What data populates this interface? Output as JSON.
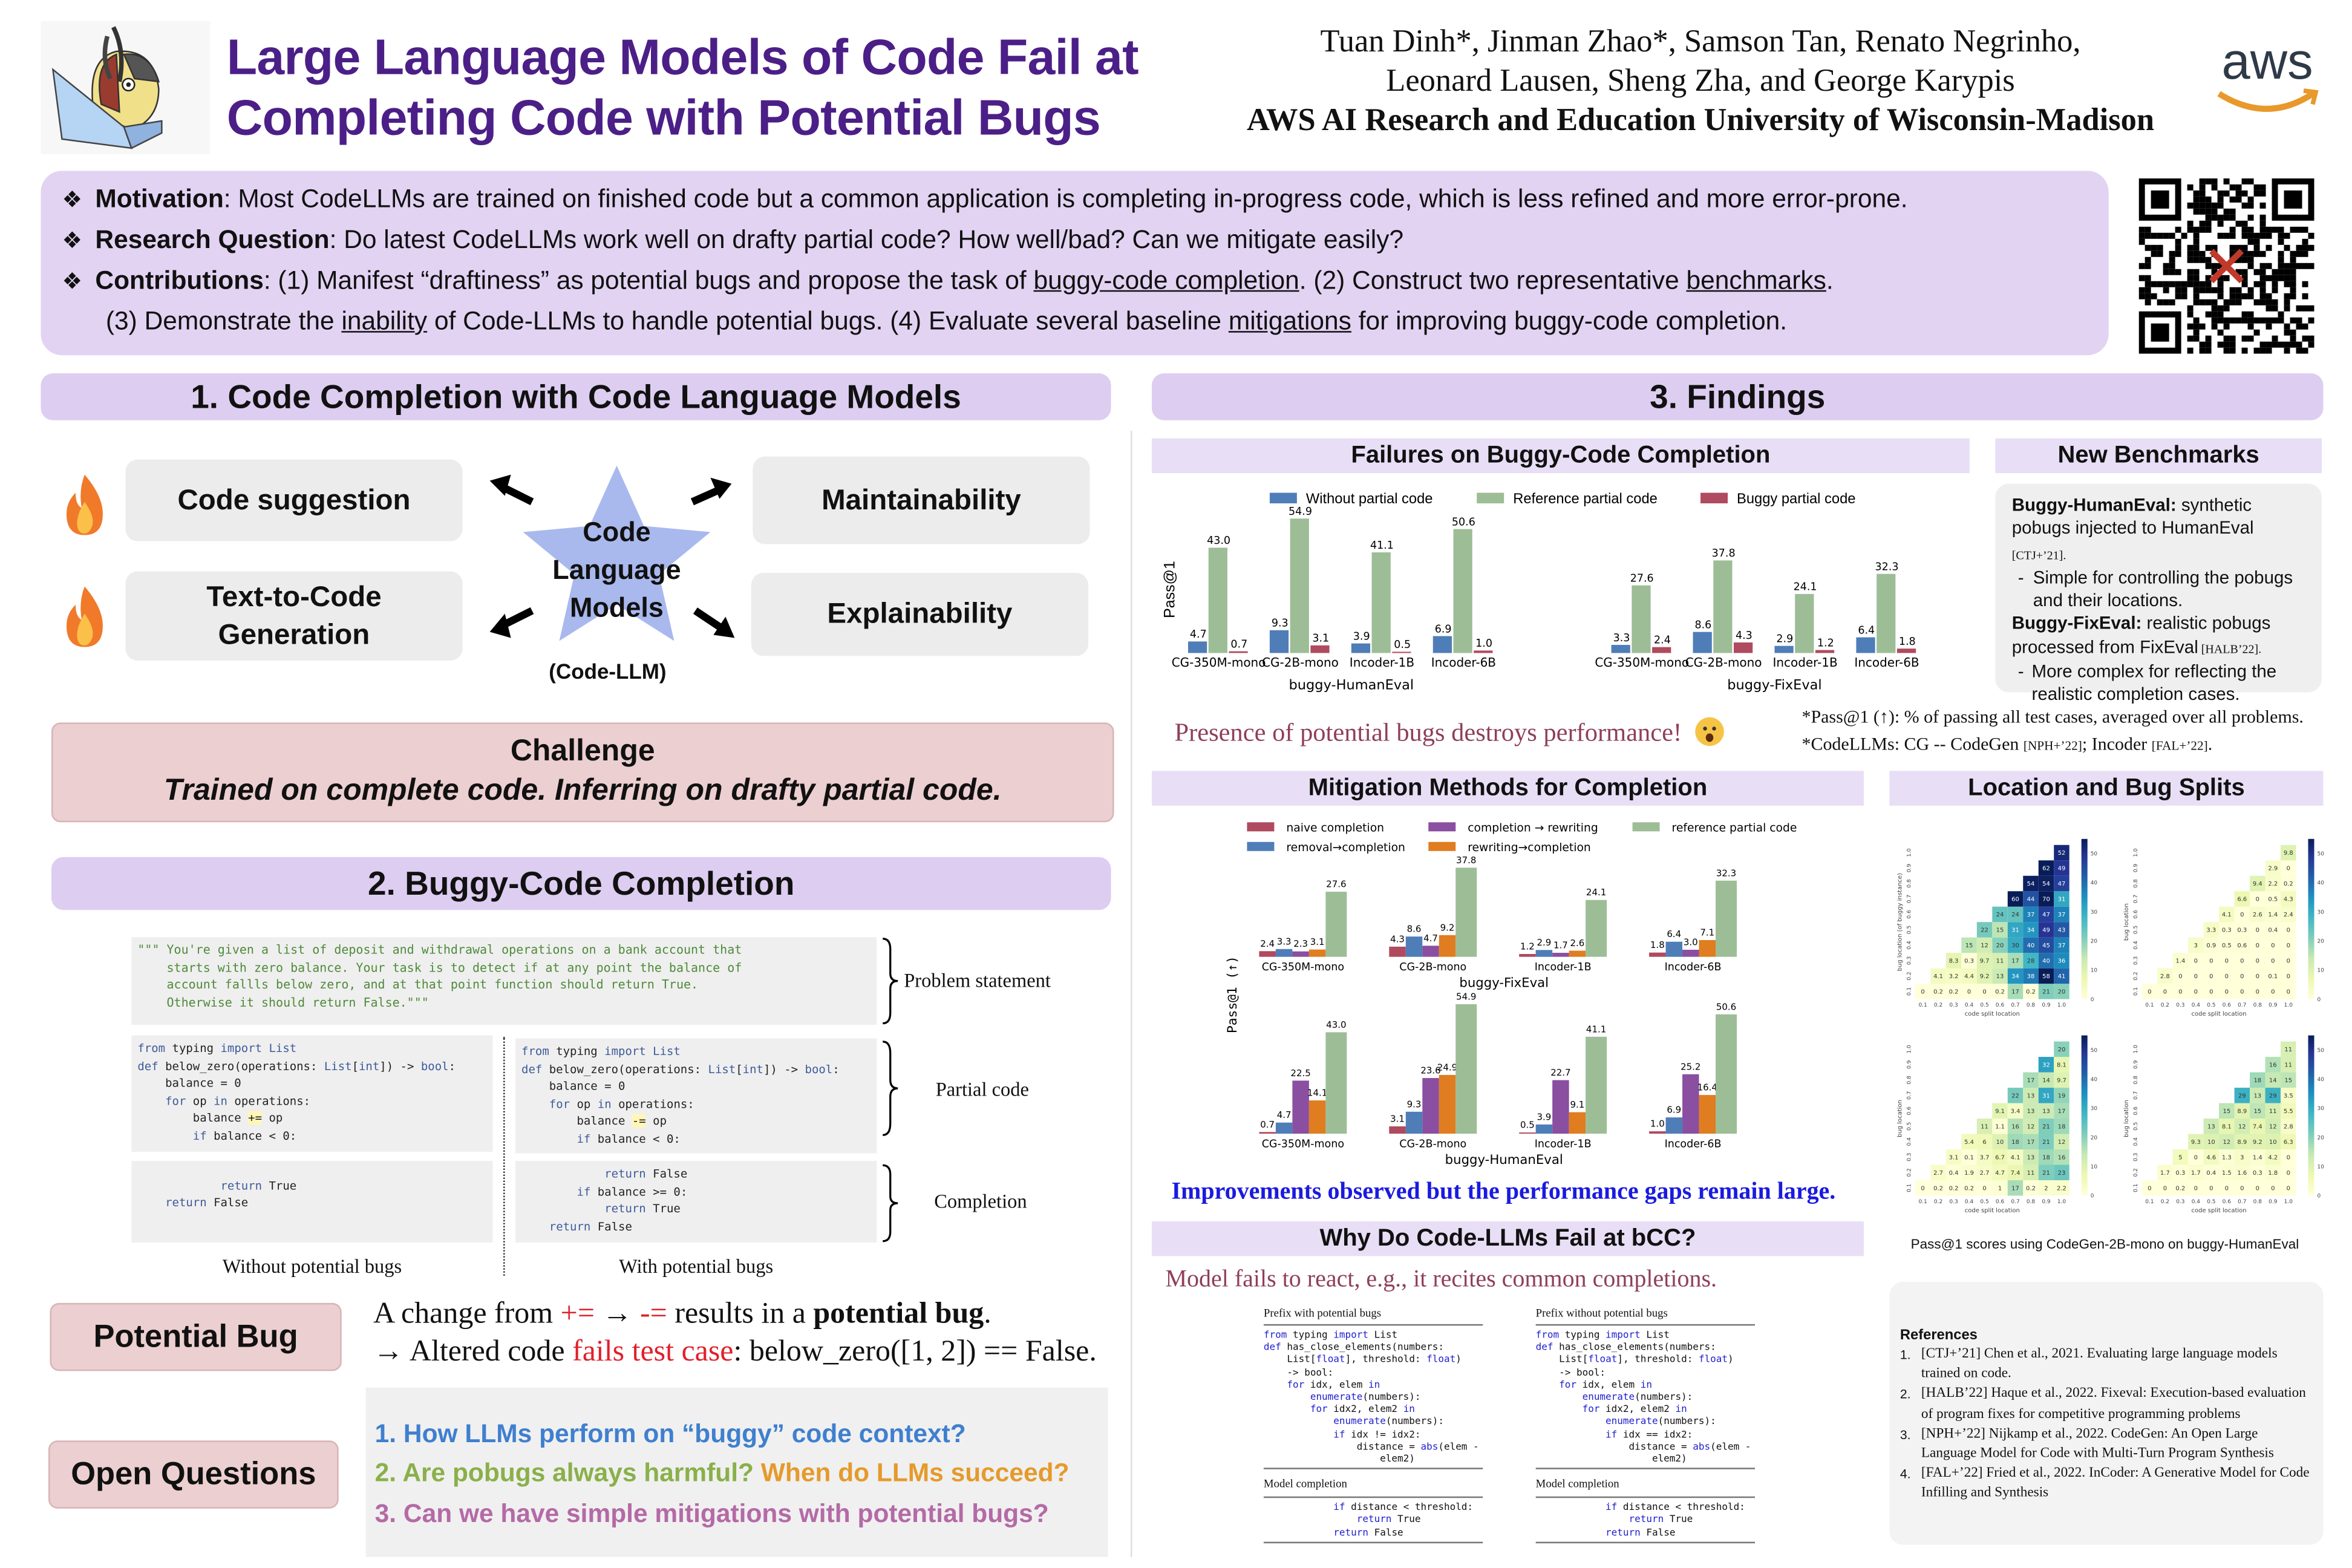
{
  "header": {
    "title_line1": "Large Language Models of Code Fail at",
    "title_line2": "Completing Code with Potential Bugs",
    "authors_line1": "Tuan Dinh*, Jinman Zhao*, Samson Tan, Renato Negrinho,",
    "authors_line2": "Leonard Lausen, Sheng Zha, and George Karypis",
    "affiliations": "AWS AI Research and Education University of Wisconsin-Madison",
    "aws_logo_text": "aws"
  },
  "motivation": {
    "items": [
      {
        "label": "Motivation",
        "text": ": Most CodeLLMs are trained on finished code but a common application is completing in-progress code, which is less refined and more error-prone."
      },
      {
        "label": "Research Question",
        "text": ": Do latest CodeLLMs work well on drafty partial code? How well/bad? Can we mitigate easily?"
      }
    ],
    "contrib_label": "Contributions",
    "contrib_a": ": (1) Manifest “draftiness” as potential bugs and propose the task of ",
    "contrib_link1": "buggy-code completion",
    "contrib_b": ". (2) Construct two representative ",
    "contrib_link2": "benchmarks",
    "contrib_c": ".",
    "contrib_d": "(3) Demonstrate the ",
    "contrib_link3": "inability",
    "contrib_e": " of Code-LLMs to handle potential bugs. (4) Evaluate several baseline ",
    "contrib_link4": "mitigations",
    "contrib_f": " for improving buggy-code completion."
  },
  "section1": {
    "title": "1.  Code Completion with Code Language Models",
    "left_boxes": [
      "Code suggestion",
      "Text-to-Code Generation"
    ],
    "right_boxes": [
      "Maintainability",
      "Explainability"
    ],
    "star_text": "Code Language Models",
    "star_sub": "(Code-LLM)",
    "challenge_title": "Challenge",
    "challenge_text": "Trained on complete code. Inferring on drafty partial code."
  },
  "section2": {
    "title": "2. Buggy-Code Completion",
    "problem_statement": [
      "\"\"\" You're given a list of deposit and withdrawal operations on a bank account that",
      "    starts with zero balance. Your task is to detect if at any point the balance of",
      "    account fallls below zero, and at that point function should return True.",
      "    Otherwise it should return False.\"\"\""
    ],
    "partial_without": [
      "from typing import List",
      "def below_zero(operations: List[int]) -> bool:",
      "    balance = 0",
      "    for op in operations:",
      "        balance += op",
      "        if balance < 0:"
    ],
    "partial_with": [
      "from typing import List",
      "def below_zero(operations: List[int]) -> bool:",
      "    balance = 0",
      "    for op in operations:",
      "        balance -= op",
      "        if balance < 0:"
    ],
    "completion_without": [
      "",
      "            return True",
      "    return False"
    ],
    "completion_with": [
      "            return False",
      "        if balance >= 0:",
      "            return True",
      "    return False"
    ],
    "label_problem": "Problem statement",
    "label_partial": "Partial code",
    "label_completion": "Completion",
    "caption_without": "Without potential bugs",
    "caption_with": "With potential bugs",
    "potential_bug_label": "Potential Bug",
    "pb_line1_a": "A change from ",
    "pb_plus": "+=",
    "pb_arrow": " → ",
    "pb_minus": "-=",
    "pb_line1_b": " results in a ",
    "pb_line1_bold": "potential bug",
    "pb_line1_end": ".",
    "pb_line2_a": "→ Altered code ",
    "pb_line2_red": "fails test case",
    "pb_line2_b": ": below_zero([1, 2]) == False.",
    "open_questions_label": "Open Questions",
    "questions": [
      {
        "text": "1.   How LLMs perform on “buggy” code context?"
      },
      {
        "text": "2.   Are pobugs always harmful?",
        "text2": " When do LLMs succeed?"
      },
      {
        "text": "3.   Can we have simple mitigations with potential bugs?"
      }
    ]
  },
  "section3": {
    "title": "3. Findings",
    "failures_title": "Failures on Buggy-Code Completion",
    "benchmarks_title": "New Benchmarks",
    "bench": {
      "b1_bold": "Buggy-HumanEval:",
      "b1_text": " synthetic pobugs injected to HumanEval",
      "b1_ref": " [CTJ+’21].",
      "b1_sub": "Simple for controlling the pobugs and their locations.",
      "b2_bold": "Buggy-FixEval:",
      "b2_text": "  realistic pobugs processed from FixEval",
      "b2_ref": " [HALB’22].",
      "b2_sub": "More complex for reflecting the realistic completion cases."
    },
    "presence_text": "Presence of potential bugs destroys performance!",
    "footnote1": "*Pass@1 (↑): % of passing all test cases, averaged over all problems.",
    "footnote2_a": "*CodeLLMs:  CG -- CodeGen ",
    "footnote2_ref1": "[NPH+’22]",
    "footnote2_b": "; Incoder ",
    "footnote2_ref2": "[FAL+’22]",
    "footnote2_c": ".",
    "mitigation_title": "Mitigation Methods for Completion",
    "location_title": "Location and Bug Splits",
    "improvements_text": "Improvements observed but the performance gaps remain large.",
    "why_title": "Why Do Code-LLMs Fail at bCC?",
    "why_text": "Model fails to react, e.g., it recites common completions.",
    "why_table": {
      "left_header": "Prefix with potential bugs",
      "right_header": "Prefix without potential bugs",
      "completion_header": "Model completion",
      "left_prefix": [
        "from typing import List",
        "def has_close_elements(numbers:",
        "    List[float], threshold: float)",
        "    -> bool:",
        "    for idx, elem in",
        "        enumerate(numbers):",
        "        for idx2, elem2 in",
        "            enumerate(numbers):",
        "            if idx != idx2:",
        "                distance = abs(elem -",
        "                    elem2)"
      ],
      "right_prefix": [
        "from typing import List",
        "def has_close_elements(numbers:",
        "    List[float], threshold: float)",
        "    -> bool:",
        "    for idx, elem in",
        "        enumerate(numbers):",
        "        for idx2, elem2 in",
        "            enumerate(numbers):",
        "            if idx == idx2:",
        "                distance = abs(elem -",
        "                    elem2)"
      ],
      "completion": [
        "            if distance < threshold:",
        "                return True",
        "            return False"
      ]
    },
    "heatmap_caption": "Pass@1 scores using CodeGen-2B-mono on buggy-HumanEval",
    "references_title": "References",
    "references": [
      "[CTJ+’21] Chen et al., 2021. Evaluating large language models trained on code.",
      "[HALB’22] Haque et al., 2022. Fixeval: Execution-based evaluation of program fixes for competitive programming problems",
      "[NPH+’22] Nijkamp et al., 2022. CodeGen: An Open Large Language Model for Code with Multi-Turn Program Synthesis",
      "[FAL+’22] Fried et al., 2022. InCoder: A Generative Model for Code Infilling and Synthesis"
    ]
  },
  "colors": {
    "title": "#4b1f87",
    "without_partial": "#4f7db8",
    "reference": "#9dbd96",
    "buggy": "#b04a5e",
    "completion_rewriting": "#8a4fa0",
    "rewriting_completion": "#e07d20",
    "q1": "#3f7fcf",
    "q2a": "#8ab04a",
    "q2b": "#e59a2b",
    "q3": "#b46aa6",
    "finding_text": "#8f3f5a",
    "improve_text": "#1a1ae0"
  },
  "chart_data": [
    {
      "type": "bar",
      "title": "Failures on Buggy-Code Completion",
      "ylabel": "Pass@1",
      "ylim": [
        0,
        60
      ],
      "categories": [
        "CG-350M-mono",
        "CG-2B-mono",
        "Incoder-1B",
        "Incoder-6B"
      ],
      "panels": [
        {
          "name": "buggy-HumanEval",
          "series": [
            {
              "name": "Without partial code",
              "values": [
                4.7,
                9.3,
                3.9,
                6.9
              ]
            },
            {
              "name": "Reference partial code",
              "values": [
                43.0,
                54.9,
                41.1,
                50.6
              ]
            },
            {
              "name": "Buggy partial code",
              "values": [
                0.7,
                3.1,
                0.5,
                1.0
              ]
            }
          ]
        },
        {
          "name": "buggy-FixEval",
          "series": [
            {
              "name": "Without partial code",
              "values": [
                3.3,
                8.6,
                2.9,
                6.4
              ]
            },
            {
              "name": "Reference partial code",
              "values": [
                27.6,
                37.8,
                24.1,
                32.3
              ]
            },
            {
              "name": "Buggy partial code",
              "values": [
                2.4,
                4.3,
                1.2,
                1.8
              ]
            }
          ]
        }
      ],
      "legend": "top"
    },
    {
      "type": "bar",
      "title": "Mitigation Methods for Completion",
      "ylabel": "Pass@1 (↑)",
      "ylim": [
        0,
        60
      ],
      "categories": [
        "CG-350M-mono",
        "CG-2B-mono",
        "Incoder-1B",
        "Incoder-6B"
      ],
      "legend_order": [
        "naive completion",
        "completion → rewriting",
        "reference partial code",
        "removal→completion",
        "rewriting→completion"
      ],
      "panels": [
        {
          "name": "buggy-FixEval",
          "series": [
            {
              "name": "naive completion",
              "values": [
                2.4,
                4.3,
                1.2,
                1.8
              ]
            },
            {
              "name": "removal→completion",
              "values": [
                3.3,
                8.6,
                2.9,
                6.4
              ]
            },
            {
              "name": "completion → rewriting",
              "values": [
                2.3,
                4.7,
                1.7,
                3.0
              ]
            },
            {
              "name": "rewriting→completion",
              "values": [
                3.1,
                9.2,
                2.6,
                7.1
              ]
            },
            {
              "name": "reference partial code",
              "values": [
                27.6,
                37.8,
                24.1,
                32.3
              ]
            }
          ]
        },
        {
          "name": "buggy-HumanEval",
          "series": [
            {
              "name": "naive completion",
              "values": [
                0.7,
                3.1,
                0.5,
                1.0
              ]
            },
            {
              "name": "removal→completion",
              "values": [
                4.7,
                9.3,
                3.9,
                6.9
              ]
            },
            {
              "name": "completion → rewriting",
              "values": [
                22.5,
                23.6,
                22.7,
                25.2
              ]
            },
            {
              "name": "rewriting→completion",
              "values": [
                14.1,
                24.9,
                9.1,
                16.4
              ]
            },
            {
              "name": "reference partial code",
              "values": [
                43.0,
                54.9,
                41.1,
                50.6
              ]
            }
          ]
        }
      ],
      "legend": "top"
    },
    {
      "type": "heatmap",
      "title": "Location and Bug Splits",
      "xlabel": "code split location",
      "ticks": [
        "0.1",
        "0.2",
        "0.3",
        "0.4",
        "0.5",
        "0.6",
        "0.7",
        "0.8",
        "0.9",
        "1.0"
      ],
      "colorbar_range": [
        0,
        55
      ],
      "colorbar_ticks": [
        0,
        10,
        20,
        30,
        40,
        50
      ],
      "note": "rows indexed by bug location 0.1..1.0; each row lists values for code split location from the bug location up to 1.0",
      "maps": [
        {
          "ylabel": "bug location (of buggy instance)",
          "rows": [
            [
              0,
              0.2,
              0.2,
              0,
              0,
              0.2,
              17,
              0.2,
              21,
              20
            ],
            [
              4.1,
              3.2,
              4.4,
              9.2,
              13,
              34,
              38,
              58,
              41
            ],
            [
              8.3,
              0.3,
              9.7,
              11,
              17,
              28,
              40,
              36
            ],
            [
              15,
              12,
              20,
              30,
              40,
              45,
              37
            ],
            [
              22,
              15,
              31,
              34,
              49,
              43
            ],
            [
              24,
              24,
              37,
              47,
              37
            ],
            [
              60,
              44,
              70,
              31
            ],
            [
              54,
              54,
              47
            ],
            [
              62,
              49
            ],
            [
              52
            ]
          ]
        },
        {
          "ylabel": "bug location",
          "rows": [
            [
              0,
              0,
              0,
              0,
              0,
              0,
              0,
              0,
              0,
              0
            ],
            [
              2.8,
              0,
              0,
              0,
              0,
              0,
              0,
              0.1,
              0
            ],
            [
              1.4,
              0,
              0,
              0,
              0,
              0,
              0,
              0
            ],
            [
              3,
              0.9,
              0.5,
              0.6,
              0,
              0,
              0
            ],
            [
              3.3,
              0.3,
              0.3,
              0,
              0.4,
              0
            ],
            [
              4.1,
              0,
              2.6,
              1.4,
              2.4
            ],
            [
              6.6,
              0,
              0.5,
              4.3
            ],
            [
              9.4,
              2.2,
              0.2
            ],
            [
              2.9,
              0
            ],
            [
              9.8
            ]
          ]
        },
        {
          "ylabel": "bug location",
          "rows": [
            [
              0,
              0.2,
              0.2,
              0.2,
              0,
              1,
              17,
              0.2,
              2,
              2.2
            ],
            [
              2.7,
              0.4,
              1.9,
              2.7,
              4.7,
              7.4,
              11,
              21,
              23
            ],
            [
              3.1,
              0.1,
              3.7,
              6.7,
              4.1,
              13,
              18,
              16
            ],
            [
              5.4,
              6,
              10,
              18,
              17,
              21,
              12
            ],
            [
              11,
              1.1,
              16,
              12,
              21,
              18
            ],
            [
              9.1,
              3.4,
              13,
              13,
              17
            ],
            [
              22,
              13,
              31,
              19
            ],
            [
              17,
              14,
              9.7
            ],
            [
              32,
              8.1
            ],
            [
              20
            ]
          ]
        },
        {
          "ylabel": "bug location",
          "rows": [
            [
              0,
              0,
              0.2,
              0,
              0,
              0,
              0,
              0,
              0,
              0
            ],
            [
              1.7,
              0.3,
              1.7,
              0.4,
              1.5,
              1.6,
              0.3,
              1.8,
              0
            ],
            [
              5,
              0,
              4.6,
              1.3,
              3,
              1.4,
              4.2,
              0
            ],
            [
              9.3,
              10,
              12,
              8.9,
              9.2,
              10,
              6.3
            ],
            [
              13,
              8.1,
              12,
              7.4,
              12,
              2.8
            ],
            [
              15,
              8.9,
              15,
              11,
              5.5
            ],
            [
              29,
              13,
              29,
              3.5
            ],
            [
              18,
              14,
              15
            ],
            [
              16,
              11
            ],
            [
              11
            ]
          ]
        }
      ]
    }
  ]
}
